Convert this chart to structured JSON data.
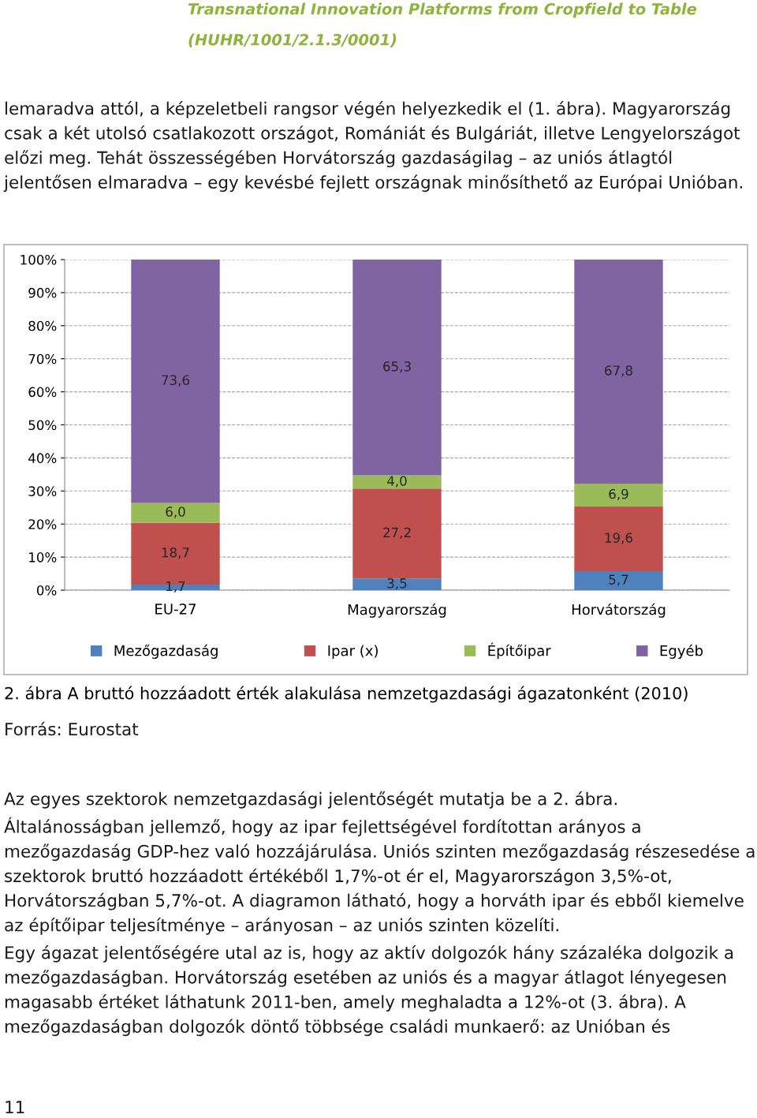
{
  "chart_data": {
    "type": "bar",
    "stacked": true,
    "title": "2. ábra A bruttó hozzáadott érték alakulása nemzetgazdasági ágazatonként (2010)",
    "categories": [
      "EU-27",
      "Magyarország",
      "Horvátország"
    ],
    "series": [
      {
        "name": "Mezőgazdaság",
        "color": "#4f81bd",
        "values": [
          1.7,
          3.5,
          5.7
        ],
        "value_labels": [
          "1,7",
          "3,5",
          "5,7"
        ]
      },
      {
        "name": "Ipar (x)",
        "color": "#c0504d",
        "values": [
          18.7,
          27.2,
          19.6
        ],
        "value_labels": [
          "18,7",
          "27,2",
          "19,6"
        ]
      },
      {
        "name": "Építőipar",
        "color": "#9bbb59",
        "values": [
          6.0,
          4.0,
          6.9
        ],
        "value_labels": [
          "6,0",
          "4,0",
          "6,9"
        ]
      },
      {
        "name": "Egyéb",
        "color": "#8064a2",
        "values": [
          73.6,
          65.3,
          67.8
        ],
        "value_labels": [
          "73,6",
          "65,3",
          "67,8"
        ]
      }
    ],
    "ylim": [
      0,
      100
    ],
    "yticks": [
      {
        "value": 0,
        "label": "0%"
      },
      {
        "value": 10,
        "label": "10%"
      },
      {
        "value": 20,
        "label": "20%"
      },
      {
        "value": 30,
        "label": "30%"
      },
      {
        "value": 40,
        "label": "40%"
      },
      {
        "value": 50,
        "label": "50%"
      },
      {
        "value": 60,
        "label": "60%"
      },
      {
        "value": 70,
        "label": "70%"
      },
      {
        "value": 80,
        "label": "80%"
      },
      {
        "value": 90,
        "label": "90%"
      },
      {
        "value": 100,
        "label": "100%"
      }
    ],
    "grid": "y",
    "legend": "bottom",
    "annotations": [
      "Transnational Innovation Platforms from Cropfield to Table",
      "(HUHR/1001/2.1.3/0001)",
      "lemaradva attól, a képzeletbeli rangsor végén helyezkedik el (1. ábra). Magyarország csak a két utolsó csatlakozott országot, Romániát és Bulgáriát, illetve Lengyelországot előzi meg. Tehát összességében Horvátország gazdaságilag – az uniós átlagtól jelentősen elmaradva – egy kevésbé fejlett országnak minősíthető az Európai Unióban.",
      "Forrás: Eurostat",
      "Az egyes szektorok nemzetgazdasági jelentőségét mutatja be a 2. ábra. Általánosságban jellemző, hogy az ipar fejlettségével fordítottan arányos a mezőgazdaság GDP-hez való hozzájárulása. Uniós szinten mezőgazdaság részesedése a szektorok bruttó hozzáadott értékéből 1,7%-ot ér el, Magyarországon 3,5%-ot, Horvátországban 5,7%-ot. A diagramon látható, hogy a horváth ipar és ebből kiemelve az építőipar teljesítménye – arányosan – az uniós szinten közelíti.",
      "Egy ágazat jelentőségére utal az is, hogy az aktív dolgozók hány százaléka dolgozik a mezőgazdaságban. Horvátország esetében az uniós és a magyar átlagot lényegesen magasabb értéket láthatunk 2011-ben, amely meghaladta a 12%-ot (3. ábra). A mezőgazdaságban dolgozók döntő többsége családi munkaerő: az Unióban és",
      "11"
    ]
  }
}
